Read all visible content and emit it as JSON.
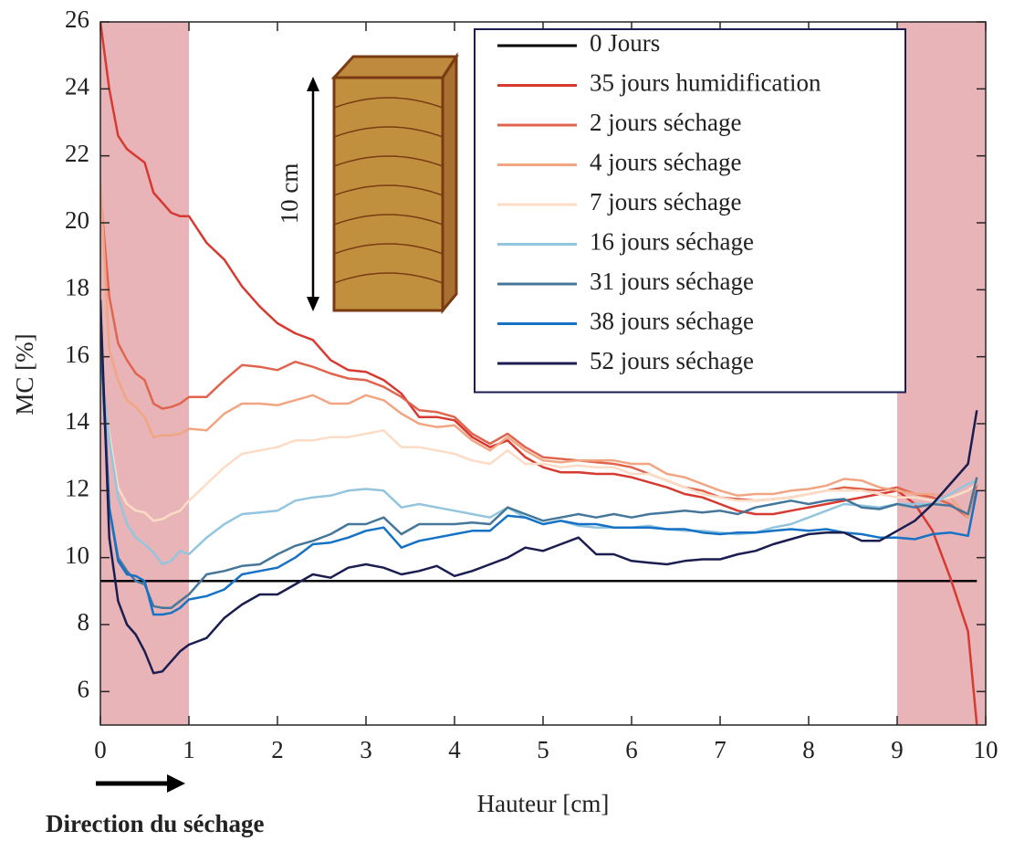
{
  "chart_data": {
    "type": "line",
    "xlabel": "Hauteur [cm]",
    "ylabel": "MC [%]",
    "xlim": [
      0,
      10
    ],
    "ylim": [
      5,
      26
    ],
    "xticks": [
      0,
      1,
      2,
      3,
      4,
      5,
      6,
      7,
      8,
      9,
      10
    ],
    "yticks": [
      6,
      8,
      10,
      12,
      14,
      16,
      18,
      20,
      22,
      24,
      26
    ],
    "grid": false,
    "legend": "upper right",
    "shaded_regions": [
      [
        0,
        1
      ],
      [
        9,
        10
      ]
    ],
    "shaded_color": "#e8b4b8",
    "annotations": [
      "10 cm",
      "Direction du séchage"
    ],
    "x": [
      0,
      0.1,
      0.2,
      0.3,
      0.4,
      0.5,
      0.6,
      0.7,
      0.8,
      0.9,
      1.0,
      1.2,
      1.4,
      1.6,
      1.8,
      2.0,
      2.2,
      2.4,
      2.6,
      2.8,
      3.0,
      3.2,
      3.4,
      3.6,
      3.8,
      4.0,
      4.2,
      4.4,
      4.6,
      4.8,
      5.0,
      5.2,
      5.4,
      5.6,
      5.8,
      6.0,
      6.2,
      6.4,
      6.6,
      6.8,
      7.0,
      7.2,
      7.4,
      7.6,
      7.8,
      8.0,
      8.2,
      8.4,
      8.6,
      8.8,
      9.0,
      9.2,
      9.4,
      9.6,
      9.8,
      9.9
    ],
    "series": [
      {
        "name": "0 Jours",
        "color": "#000000",
        "values": [
          9.3,
          9.3,
          9.3,
          9.3,
          9.3,
          9.3,
          9.3,
          9.3,
          9.3,
          9.3,
          9.3,
          9.3,
          9.3,
          9.3,
          9.3,
          9.3,
          9.3,
          9.3,
          9.3,
          9.3,
          9.3,
          9.3,
          9.3,
          9.3,
          9.3,
          9.3,
          9.3,
          9.3,
          9.3,
          9.3,
          9.3,
          9.3,
          9.3,
          9.3,
          9.3,
          9.3,
          9.3,
          9.3,
          9.3,
          9.3,
          9.3,
          9.3,
          9.3,
          9.3,
          9.3,
          9.3,
          9.3,
          9.3,
          9.3,
          9.3,
          9.3,
          9.3,
          9.3,
          9.3,
          9.3,
          9.3
        ]
      },
      {
        "name": "35 jours humidification",
        "color": "#d73a31",
        "values": [
          26,
          24,
          22.6,
          22.2,
          22,
          21.8,
          20.9,
          20.6,
          20.3,
          20.2,
          20.2,
          19.4,
          18.9,
          18.1,
          17.5,
          17.0,
          16.7,
          16.5,
          15.9,
          15.6,
          15.55,
          15.3,
          14.9,
          14.2,
          14.2,
          14.1,
          13.6,
          13.3,
          13.5,
          13.0,
          12.7,
          12.55,
          12.55,
          12.5,
          12.5,
          12.4,
          12.25,
          12.1,
          11.9,
          11.8,
          11.6,
          11.4,
          11.3,
          11.3,
          11.4,
          11.5,
          11.6,
          11.7,
          11.8,
          11.9,
          12.0,
          11.6,
          10.8,
          9.4,
          7.8,
          5.0
        ]
      },
      {
        "name": "2 jours séchage",
        "color": "#e0654f",
        "values": [
          20.9,
          17.8,
          16.4,
          15.9,
          15.5,
          15.3,
          14.6,
          14.45,
          14.5,
          14.6,
          14.8,
          14.8,
          15.3,
          15.75,
          15.7,
          15.6,
          15.85,
          15.7,
          15.5,
          15.35,
          15.3,
          15.1,
          14.8,
          14.4,
          14.35,
          14.2,
          13.7,
          13.4,
          13.7,
          13.3,
          13.0,
          12.95,
          12.9,
          12.85,
          12.8,
          12.7,
          12.5,
          12.3,
          12.1,
          12.0,
          11.8,
          11.75,
          11.7,
          11.75,
          11.8,
          11.9,
          12.0,
          12.1,
          12.05,
          12.0,
          12.1,
          11.9,
          11.8,
          11.6,
          11.2,
          12.2
        ]
      },
      {
        "name": "4 jours séchage",
        "color": "#f2a582",
        "values": [
          21.2,
          16.2,
          15.3,
          14.7,
          14.5,
          14.2,
          13.6,
          13.65,
          13.65,
          13.7,
          13.85,
          13.8,
          14.3,
          14.6,
          14.6,
          14.55,
          14.7,
          14.85,
          14.6,
          14.6,
          14.85,
          14.7,
          14.3,
          14.0,
          13.9,
          13.95,
          13.5,
          13.2,
          13.6,
          13.2,
          12.9,
          12.85,
          12.9,
          12.9,
          12.9,
          12.8,
          12.8,
          12.5,
          12.4,
          12.2,
          12.0,
          11.85,
          11.9,
          11.9,
          12.0,
          12.05,
          12.15,
          12.35,
          12.3,
          12.1,
          12.0,
          11.9,
          11.9,
          11.8,
          11.2,
          12.4
        ]
      },
      {
        "name": "7 jours séchage",
        "color": "#fcdcc5",
        "values": [
          15.5,
          13.7,
          12.1,
          11.6,
          11.4,
          11.35,
          11.1,
          11.15,
          11.3,
          11.4,
          11.7,
          12.2,
          12.7,
          13.1,
          13.2,
          13.3,
          13.5,
          13.5,
          13.6,
          13.6,
          13.7,
          13.8,
          13.3,
          13.3,
          13.2,
          13.1,
          12.9,
          12.8,
          13.2,
          12.8,
          12.8,
          12.7,
          12.75,
          12.7,
          12.7,
          12.5,
          12.5,
          12.3,
          12.1,
          11.9,
          11.8,
          11.7,
          11.7,
          11.75,
          11.8,
          11.9,
          12.0,
          12.0,
          12.0,
          11.9,
          11.8,
          11.8,
          11.7,
          11.8,
          12.0,
          12.2
        ]
      },
      {
        "name": "16 jours séchage",
        "color": "#93c6de",
        "values": [
          15.9,
          13.5,
          11.8,
          11.0,
          10.6,
          10.4,
          10.15,
          9.8,
          9.9,
          10.2,
          10.1,
          10.6,
          11.0,
          11.3,
          11.35,
          11.4,
          11.7,
          11.8,
          11.85,
          12.0,
          12.05,
          12.0,
          11.5,
          11.6,
          11.5,
          11.4,
          11.3,
          11.2,
          11.5,
          11.2,
          11.0,
          11.1,
          10.95,
          10.9,
          10.9,
          10.9,
          10.95,
          10.85,
          10.8,
          10.8,
          10.75,
          10.7,
          10.75,
          10.9,
          11.0,
          11.2,
          11.4,
          11.6,
          11.55,
          11.5,
          11.6,
          11.6,
          11.6,
          11.9,
          12.2,
          12.3
        ]
      },
      {
        "name": "31 jours séchage",
        "color": "#45779b",
        "values": [
          16.5,
          11.5,
          10.0,
          9.6,
          9.3,
          9.2,
          8.55,
          8.5,
          8.5,
          8.7,
          8.9,
          9.5,
          9.6,
          9.75,
          9.8,
          10.1,
          10.35,
          10.5,
          10.7,
          11.0,
          11.0,
          11.2,
          10.7,
          11.0,
          11.0,
          11.0,
          11.05,
          11.0,
          11.5,
          11.3,
          11.1,
          11.2,
          11.3,
          11.2,
          11.3,
          11.2,
          11.3,
          11.35,
          11.4,
          11.35,
          11.4,
          11.3,
          11.5,
          11.6,
          11.7,
          11.6,
          11.7,
          11.75,
          11.5,
          11.45,
          11.6,
          11.5,
          11.6,
          11.55,
          11.3,
          12.4
        ]
      },
      {
        "name": "38 jours séchage",
        "color": "#1672c4",
        "values": [
          17.0,
          11.5,
          9.9,
          9.5,
          9.45,
          9.3,
          8.3,
          8.3,
          8.35,
          8.5,
          8.75,
          8.85,
          9.05,
          9.5,
          9.6,
          9.7,
          10.0,
          10.4,
          10.45,
          10.6,
          10.8,
          10.9,
          10.3,
          10.5,
          10.6,
          10.7,
          10.8,
          10.8,
          11.25,
          11.2,
          11.0,
          11.1,
          11.0,
          11.0,
          10.9,
          10.9,
          10.9,
          10.85,
          10.85,
          10.75,
          10.7,
          10.75,
          10.75,
          10.8,
          10.85,
          10.8,
          10.85,
          10.75,
          10.7,
          10.6,
          10.6,
          10.55,
          10.7,
          10.75,
          10.65,
          12.0
        ]
      },
      {
        "name": "52 jours séchage",
        "color": "#1b1d50",
        "values": [
          17.7,
          10.6,
          8.7,
          8.0,
          7.7,
          7.2,
          6.55,
          6.6,
          6.9,
          7.2,
          7.4,
          7.6,
          8.2,
          8.6,
          8.9,
          8.9,
          9.2,
          9.5,
          9.4,
          9.7,
          9.8,
          9.7,
          9.5,
          9.6,
          9.75,
          9.45,
          9.6,
          9.8,
          10.0,
          10.3,
          10.2,
          10.4,
          10.6,
          10.1,
          10.1,
          9.9,
          9.85,
          9.8,
          9.9,
          9.95,
          9.95,
          10.1,
          10.2,
          10.4,
          10.55,
          10.7,
          10.75,
          10.75,
          10.5,
          10.5,
          10.8,
          11.1,
          11.6,
          12.2,
          12.8,
          14.4
        ]
      }
    ]
  }
}
